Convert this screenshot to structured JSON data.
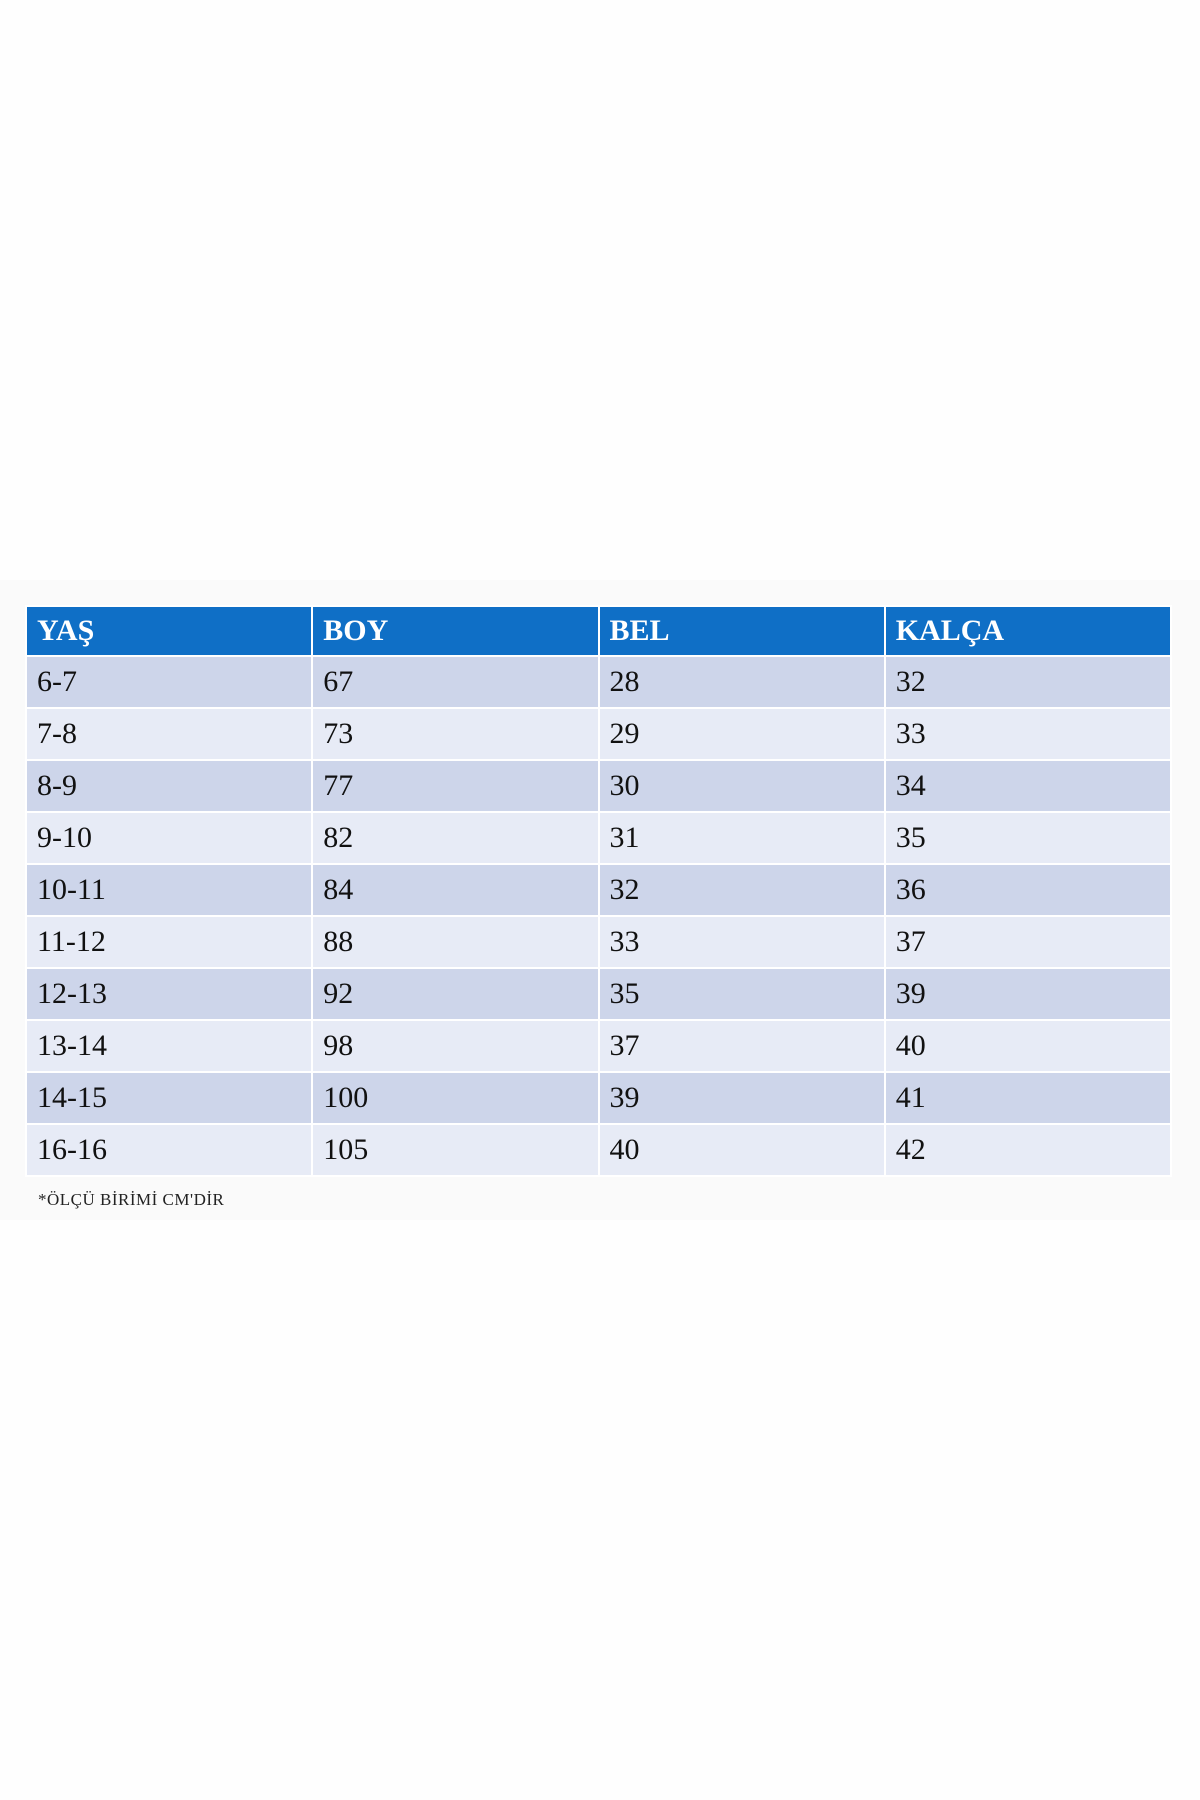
{
  "table": {
    "headers": [
      "YAŞ",
      "BOY",
      "BEL",
      "KALÇA"
    ],
    "rows": [
      [
        "6-7",
        "67",
        "28",
        "32"
      ],
      [
        "7-8",
        "73",
        "29",
        "33"
      ],
      [
        "8-9",
        "77",
        "30",
        "34"
      ],
      [
        "9-10",
        "82",
        "31",
        "35"
      ],
      [
        "10-11",
        "84",
        "32",
        "36"
      ],
      [
        "11-12",
        "88",
        "33",
        "37"
      ],
      [
        "12-13",
        "92",
        "35",
        "39"
      ],
      [
        "13-14",
        "98",
        "37",
        "40"
      ],
      [
        "14-15",
        "100",
        "39",
        "41"
      ],
      [
        "16-16",
        "105",
        "40",
        "42"
      ]
    ]
  },
  "footnote": "*ÖLÇÜ BİRİMİ  CM'DİR",
  "colors": {
    "header": "#0f6fc6",
    "row_odd": "#cdd5ea",
    "row_even": "#e7ebf6"
  }
}
